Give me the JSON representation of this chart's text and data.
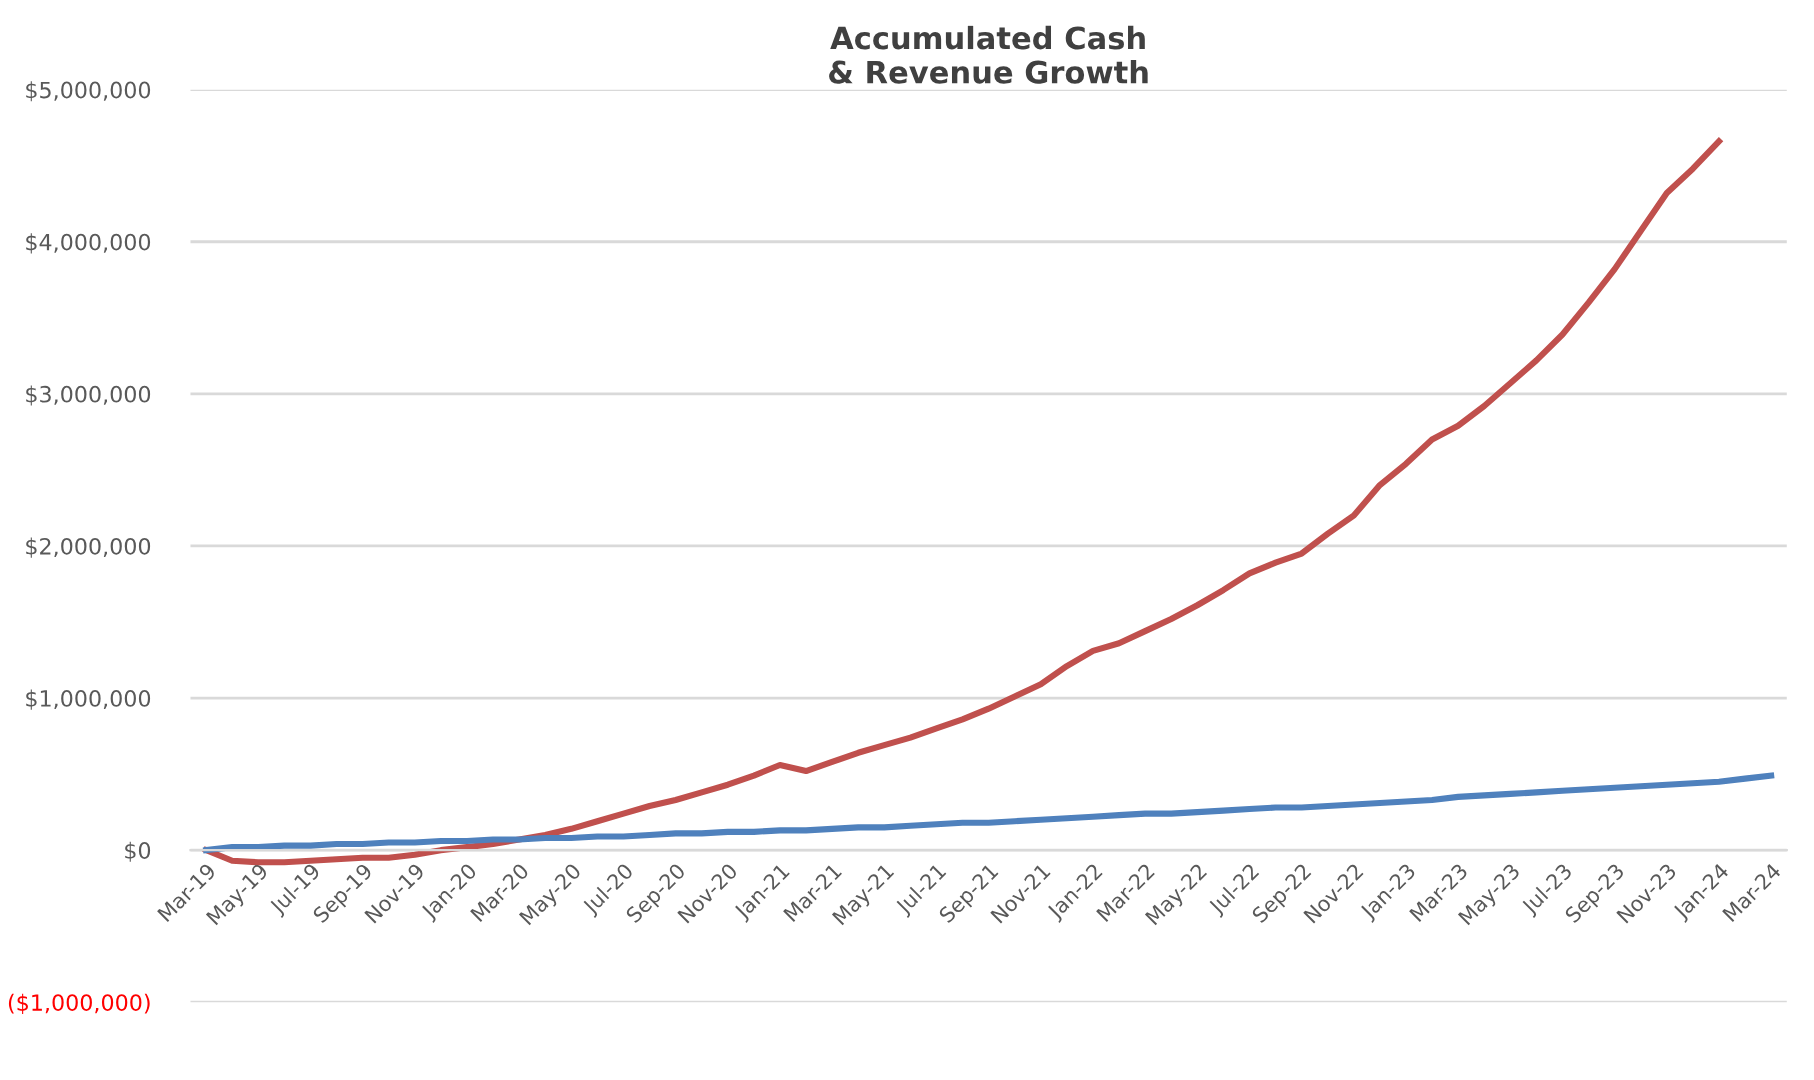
{
  "chart_data": {
    "type": "line",
    "title": "Accumulated Cash\n& Revenue Growth",
    "categories": [
      "Mar-19",
      null,
      "May-19",
      null,
      "Jul-19",
      null,
      "Sep-19",
      null,
      "Nov-19",
      null,
      "Jan-20",
      null,
      "Mar-20",
      null,
      "May-20",
      null,
      "Jul-20",
      null,
      "Sep-20",
      null,
      "Nov-20",
      null,
      "Jan-21",
      null,
      "Mar-21",
      null,
      "May-21",
      null,
      "Jul-21",
      null,
      "Sep-21",
      null,
      "Nov-21",
      null,
      "Jan-22",
      null,
      "Mar-22",
      null,
      "May-22",
      null,
      "Jul-22",
      null,
      "Sep-22",
      null,
      "Nov-22",
      null,
      "Jan-23",
      null,
      "Mar-23",
      null,
      "May-23",
      null,
      "Jul-23",
      null,
      "Sep-23",
      null,
      "Nov-23",
      null,
      "Jan-24",
      null,
      "Mar-24"
    ],
    "series": [
      {
        "color": "#c0504d",
        "values": [
          0,
          -70000,
          -80000,
          -80000,
          -70000,
          -60000,
          -50000,
          -50000,
          -30000,
          0,
          20000,
          40000,
          70000,
          100000,
          140000,
          190000,
          240000,
          290000,
          330000,
          380000,
          430000,
          490000,
          560000,
          520000,
          580000,
          640000,
          690000,
          740000,
          800000,
          860000,
          930000,
          1010000,
          1090000,
          1210000,
          1310000,
          1360000,
          1440000,
          1520000,
          1610000,
          1710000,
          1820000,
          1890000,
          1950000,
          2080000,
          2200000,
          2400000,
          2540000,
          2700000,
          2790000,
          2920000,
          3070000,
          3220000,
          3390000,
          3600000,
          3820000,
          4070000,
          4320000,
          4480000,
          4660000,
          null,
          null
        ]
      },
      {
        "color": "#4f81bd",
        "values": [
          0,
          20000,
          20000,
          30000,
          30000,
          40000,
          40000,
          50000,
          50000,
          60000,
          60000,
          70000,
          70000,
          80000,
          80000,
          90000,
          90000,
          100000,
          110000,
          110000,
          120000,
          120000,
          130000,
          130000,
          140000,
          150000,
          150000,
          160000,
          170000,
          180000,
          180000,
          190000,
          200000,
          210000,
          220000,
          230000,
          240000,
          240000,
          250000,
          260000,
          270000,
          280000,
          280000,
          290000,
          300000,
          310000,
          320000,
          330000,
          350000,
          360000,
          370000,
          380000,
          390000,
          400000,
          410000,
          420000,
          430000,
          440000,
          450000,
          470000,
          490000
        ]
      }
    ],
    "ylim": [
      -1000000,
      5000000
    ],
    "yticks": [
      {
        "value": -1000000,
        "label": "($1,000,000)"
      },
      {
        "value": 0,
        "label": "$0"
      },
      {
        "value": 1000000,
        "label": "$1,000,000"
      },
      {
        "value": 2000000,
        "label": "$2,000,000"
      },
      {
        "value": 3000000,
        "label": "$3,000,000"
      },
      {
        "value": 4000000,
        "label": "$4,000,000"
      },
      {
        "value": 5000000,
        "label": "$5,000,000"
      }
    ],
    "grid": "y",
    "legend": false,
    "marker": "none",
    "line_style": "solid"
  }
}
